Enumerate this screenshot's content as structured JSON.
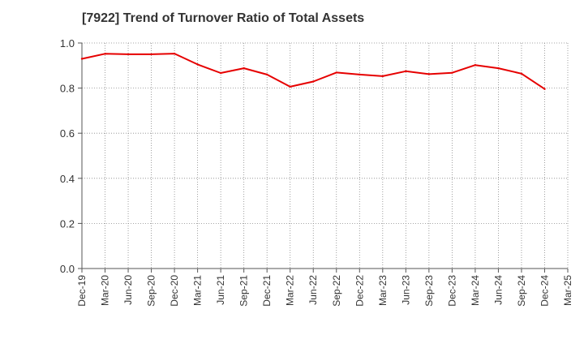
{
  "chart_data": {
    "type": "line",
    "title": "[7922]  Trend of Turnover Ratio of Total Assets",
    "xlabel": "",
    "ylabel": "",
    "ylim": [
      0.0,
      1.0
    ],
    "yticks": [
      "0.0",
      "0.2",
      "0.4",
      "0.6",
      "0.8",
      "1.0"
    ],
    "x": [
      "Dec-19",
      "Mar-20",
      "Jun-20",
      "Sep-20",
      "Dec-20",
      "Mar-21",
      "Jun-21",
      "Sep-21",
      "Dec-21",
      "Mar-22",
      "Jun-22",
      "Sep-22",
      "Dec-22",
      "Mar-23",
      "Jun-23",
      "Sep-23",
      "Dec-23",
      "Mar-24",
      "Jun-24",
      "Sep-24",
      "Dec-24",
      "Mar-25"
    ],
    "grid": true,
    "legend": "none",
    "series": [
      {
        "color": "#e60000",
        "values": [
          0.93,
          0.952,
          0.95,
          0.95,
          0.953,
          0.905,
          0.867,
          0.888,
          0.86,
          0.806,
          0.829,
          0.869,
          0.86,
          0.853,
          0.875,
          0.862,
          0.868,
          0.902,
          0.888,
          0.864,
          0.796,
          null
        ]
      }
    ]
  }
}
